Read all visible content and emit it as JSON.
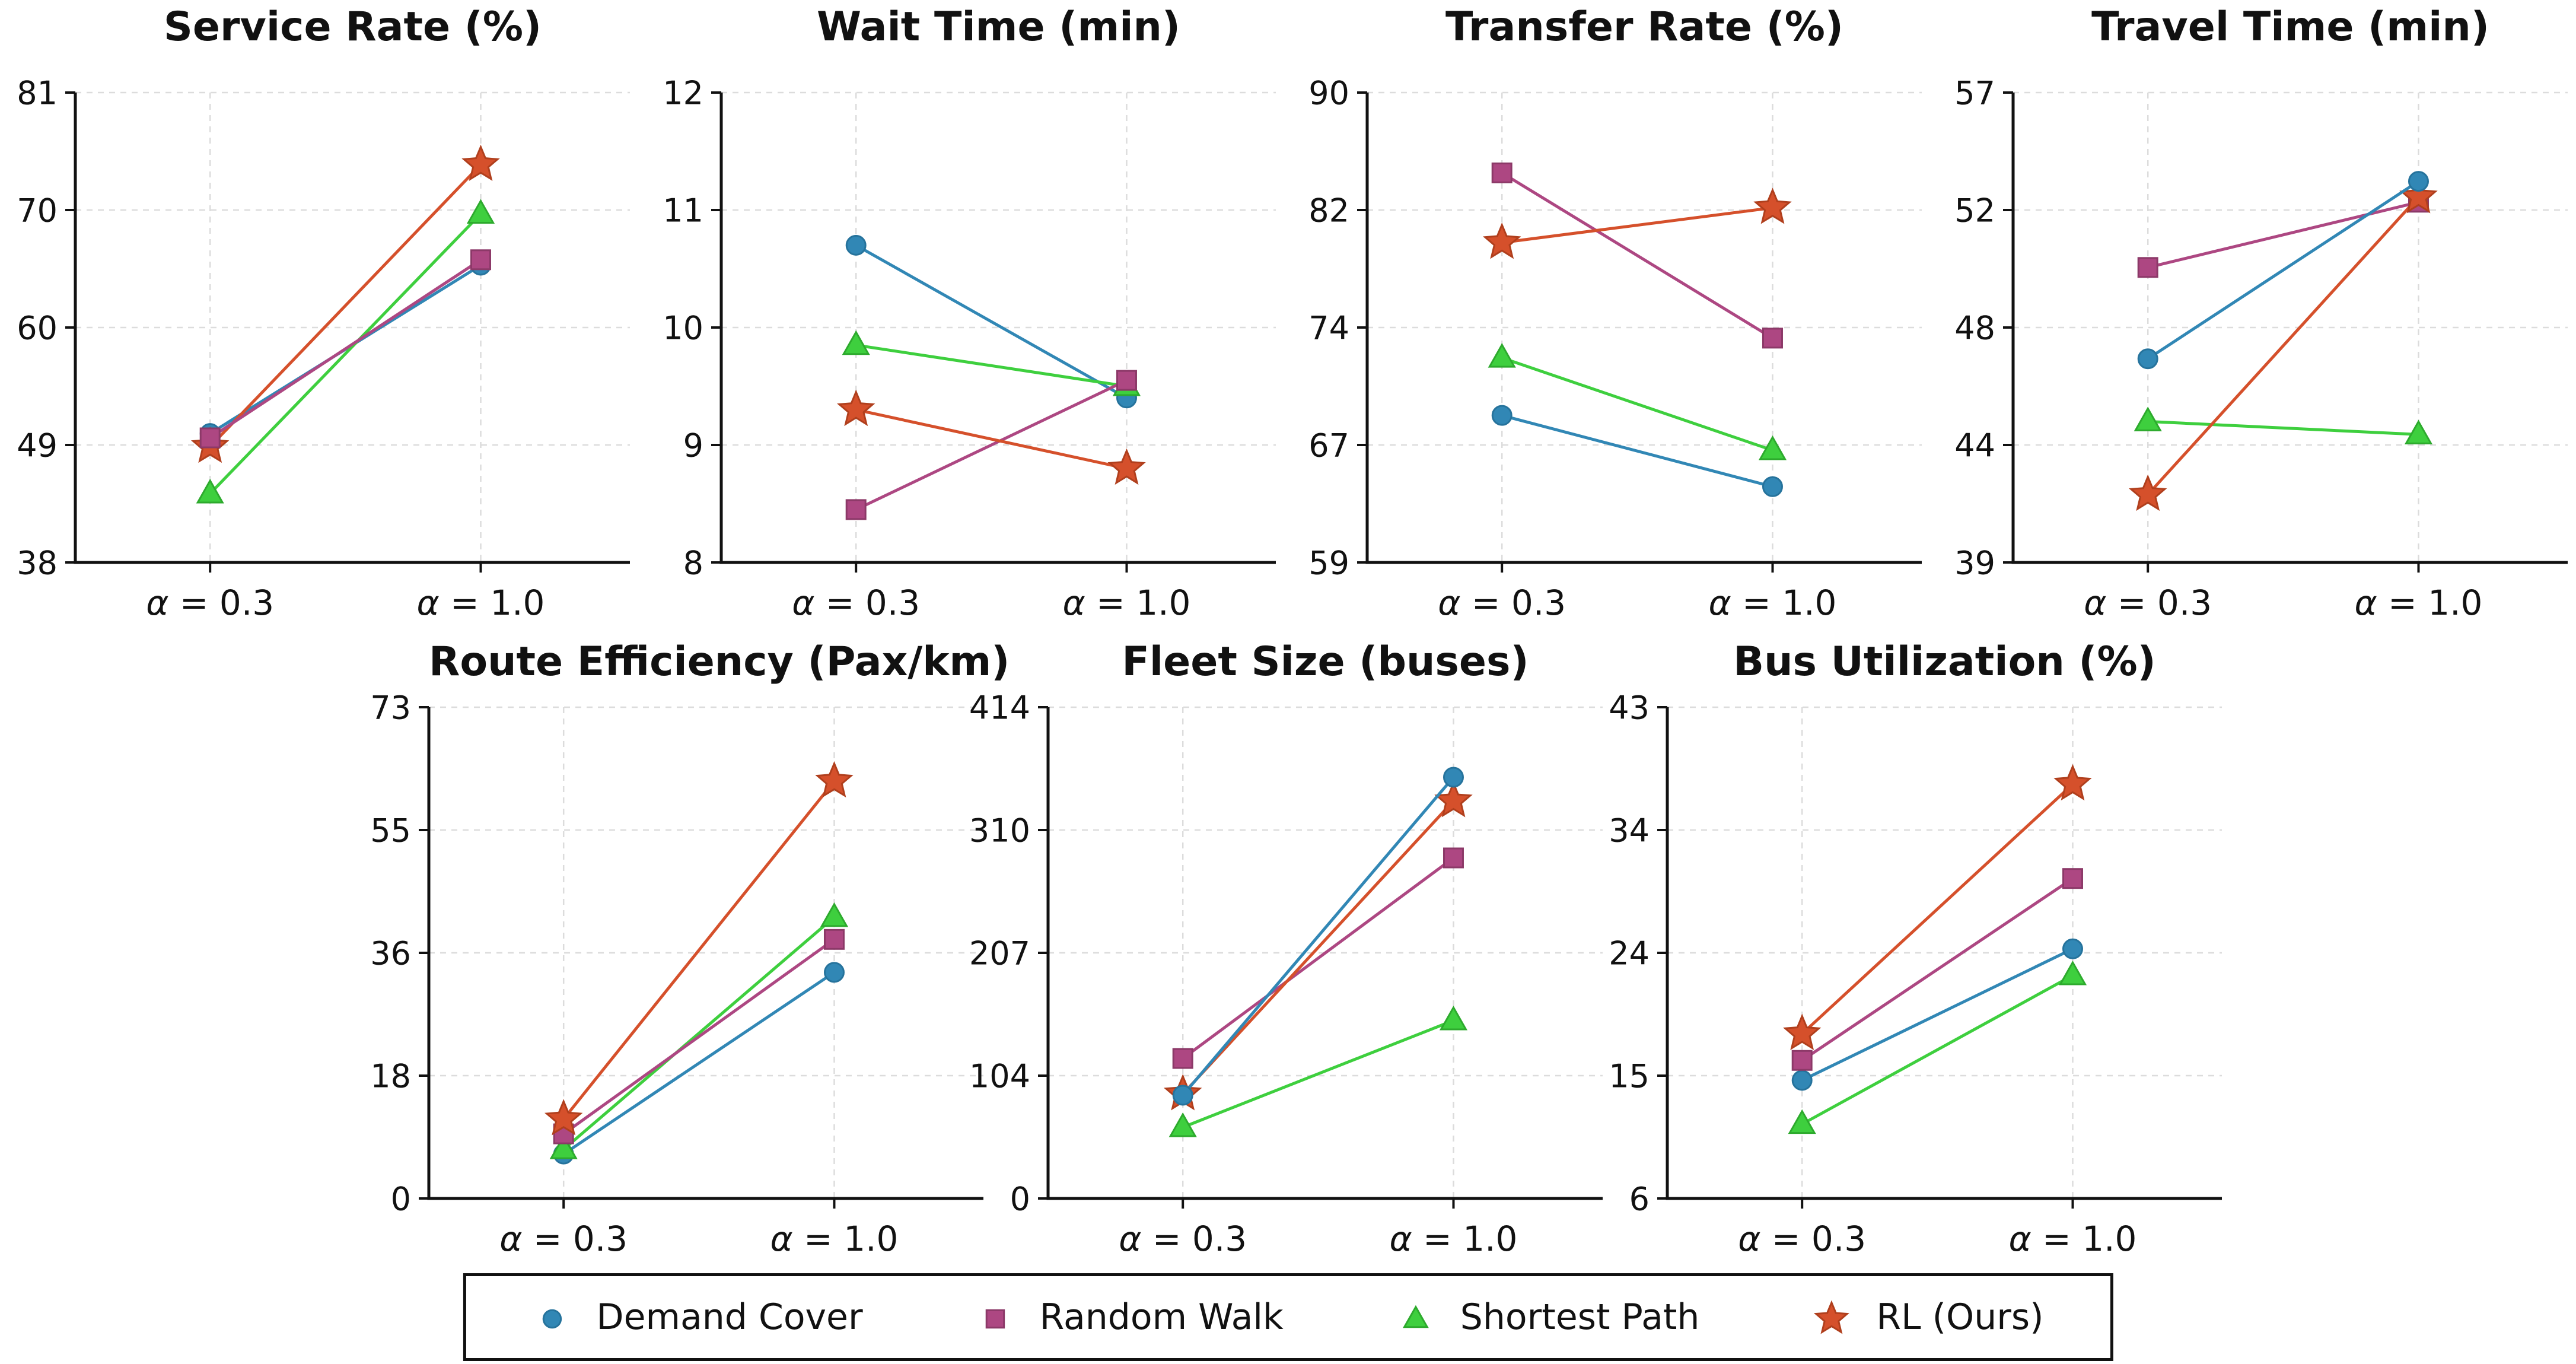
{
  "legend": {
    "items": [
      {
        "label": "Demand Cover",
        "marker": "circle",
        "color": "#3187b5",
        "edge": "#26739c"
      },
      {
        "label": "Random Walk",
        "marker": "square",
        "color": "#ad4782",
        "edge": "#8c3968"
      },
      {
        "label": "Shortest Path",
        "marker": "triangle",
        "color": "#3ecf3e",
        "edge": "#2daa2d"
      },
      {
        "label": "RL (Ours)",
        "marker": "star",
        "color": "#d5502b",
        "edge": "#b03f1d"
      }
    ],
    "position": "bottom center",
    "border_color": "#111111"
  },
  "style": {
    "grid_color": "#dcdcdc",
    "spine_color": "#111111",
    "text_color": "#111111",
    "background": "#ffffff"
  },
  "chart_data": [
    {
      "type": "line",
      "title": "Service Rate (%)",
      "categories": [
        "α = 0.3",
        "α = 1.0"
      ],
      "ylim": [
        38,
        81
      ],
      "yticks": [
        "38",
        "49",
        "60",
        "70",
        "81"
      ],
      "grid": true,
      "series": [
        {
          "name": "Demand Cover",
          "values": [
            49.8,
            65.2
          ]
        },
        {
          "name": "Random Walk",
          "values": [
            49.4,
            65.7
          ]
        },
        {
          "name": "Shortest Path",
          "values": [
            44.3,
            69.9
          ]
        },
        {
          "name": "RL (Ours)",
          "values": [
            48.6,
            74.4
          ]
        }
      ],
      "draw_order": [
        0,
        2,
        3,
        1
      ]
    },
    {
      "type": "line",
      "title": "Wait Time (min)",
      "categories": [
        "α = 0.3",
        "α = 1.0"
      ],
      "ylim": [
        8,
        12
      ],
      "yticks": [
        "8",
        "9",
        "10",
        "11",
        "12"
      ],
      "grid": true,
      "series": [
        {
          "name": "Demand Cover",
          "values": [
            10.7,
            9.4
          ]
        },
        {
          "name": "Random Walk",
          "values": [
            8.45,
            9.55
          ]
        },
        {
          "name": "Shortest Path",
          "values": [
            9.85,
            9.5
          ]
        },
        {
          "name": "RL (Ours)",
          "values": [
            9.3,
            8.8
          ]
        }
      ],
      "draw_order": [
        0,
        2,
        1,
        3
      ]
    },
    {
      "type": "line",
      "title": "Transfer Rate (%)",
      "categories": [
        "α = 0.3",
        "α = 1.0"
      ],
      "ylim": [
        59,
        90
      ],
      "yticks": [
        "59",
        "67",
        "74",
        "82",
        "90"
      ],
      "grid": true,
      "series": [
        {
          "name": "Demand Cover",
          "values": [
            68.7,
            64.0
          ]
        },
        {
          "name": "Random Walk",
          "values": [
            84.7,
            73.8
          ]
        },
        {
          "name": "Shortest Path",
          "values": [
            72.5,
            66.4
          ]
        },
        {
          "name": "RL (Ours)",
          "values": [
            80.1,
            82.4
          ]
        }
      ],
      "draw_order": [
        0,
        1,
        2,
        3
      ]
    },
    {
      "type": "line",
      "title": "Travel Time (min)",
      "categories": [
        "α = 0.3",
        "α = 1.0"
      ],
      "ylim": [
        39,
        57
      ],
      "yticks": [
        "39",
        "44",
        "48",
        "52",
        "57"
      ],
      "grid": true,
      "series": [
        {
          "name": "Demand Cover",
          "values": [
            46.8,
            53.6
          ]
        },
        {
          "name": "Random Walk",
          "values": [
            50.3,
            52.8
          ]
        },
        {
          "name": "Shortest Path",
          "values": [
            44.4,
            43.9
          ]
        },
        {
          "name": "RL (Ours)",
          "values": [
            41.6,
            53.0
          ]
        }
      ],
      "draw_order": [
        1,
        2,
        3,
        0
      ]
    },
    {
      "type": "line",
      "title": "Route Efficiency (Pax/km)",
      "categories": [
        "α = 0.3",
        "α = 1.0"
      ],
      "ylim": [
        0,
        73
      ],
      "yticks": [
        "0",
        "18",
        "36",
        "55",
        "73"
      ],
      "grid": true,
      "series": [
        {
          "name": "Demand Cover",
          "values": [
            6.6,
            33.6
          ]
        },
        {
          "name": "Random Walk",
          "values": [
            9.6,
            38.5
          ]
        },
        {
          "name": "Shortest Path",
          "values": [
            7.3,
            41.8
          ]
        },
        {
          "name": "RL (Ours)",
          "values": [
            11.8,
            62.0
          ]
        }
      ],
      "draw_order": [
        0,
        2,
        1,
        3
      ]
    },
    {
      "type": "line",
      "title": "Fleet Size (buses)",
      "categories": [
        "α = 0.3",
        "α = 1.0"
      ],
      "ylim": [
        0,
        414
      ],
      "yticks": [
        "0",
        "104",
        "207",
        "310",
        "414"
      ],
      "grid": true,
      "series": [
        {
          "name": "Demand Cover",
          "values": [
            87,
            355
          ]
        },
        {
          "name": "Random Walk",
          "values": [
            118,
            287
          ]
        },
        {
          "name": "Shortest Path",
          "values": [
            60,
            150
          ]
        },
        {
          "name": "RL (Ours)",
          "values": [
            88,
            335
          ]
        }
      ],
      "draw_order": [
        1,
        2,
        3,
        0
      ]
    },
    {
      "type": "line",
      "title": "Bus Utilization (%)",
      "categories": [
        "α = 0.3",
        "α = 1.0"
      ],
      "ylim": [
        6,
        43
      ],
      "yticks": [
        "6",
        "15",
        "24",
        "34",
        "43"
      ],
      "grid": true,
      "series": [
        {
          "name": "Demand Cover",
          "values": [
            14.9,
            24.8
          ]
        },
        {
          "name": "Random Walk",
          "values": [
            16.4,
            30.1
          ]
        },
        {
          "name": "Shortest Path",
          "values": [
            11.6,
            22.8
          ]
        },
        {
          "name": "RL (Ours)",
          "values": [
            18.4,
            37.2
          ]
        }
      ],
      "draw_order": [
        0,
        1,
        2,
        3
      ]
    }
  ]
}
